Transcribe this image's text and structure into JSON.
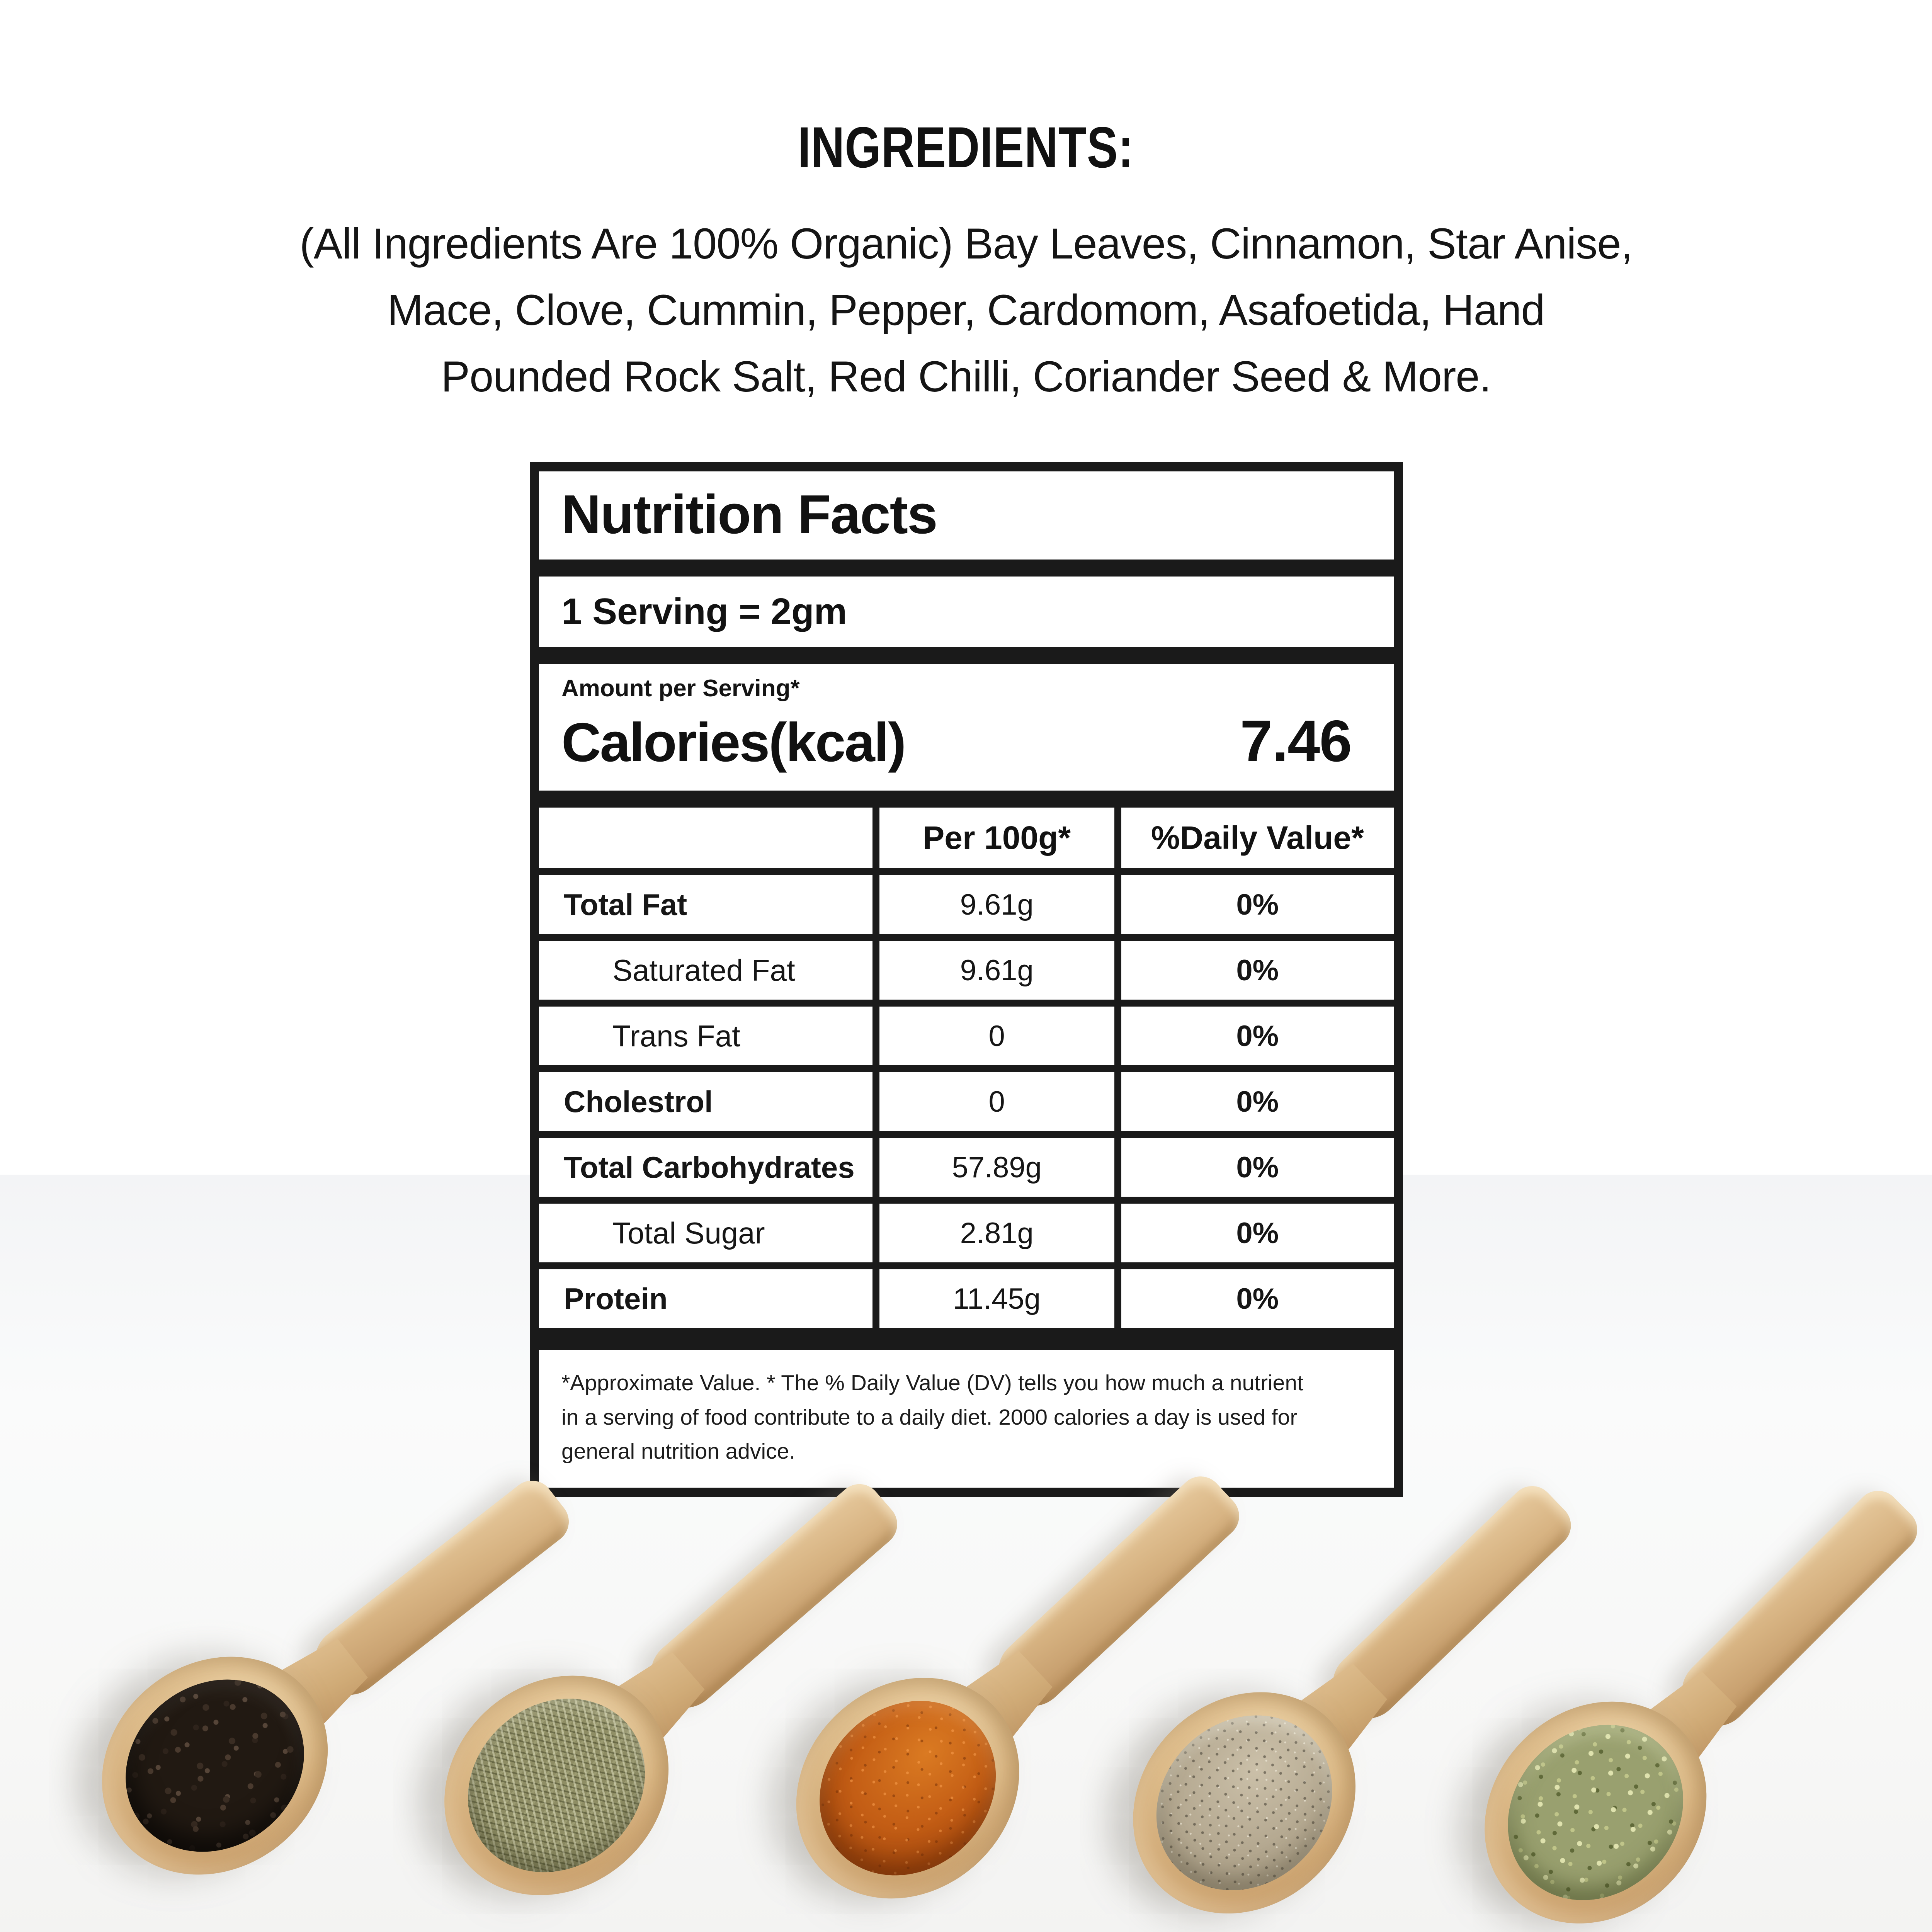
{
  "ingredients": {
    "heading": "INGREDIENTS:",
    "lines": [
      "(All Ingredients Are 100% Organic) Bay Leaves, Cinnamon, Star Anise,",
      "Mace, Clove, Cummin, Pepper, Cardomom, Asafoetida, Hand",
      "Pounded Rock Salt, Red Chilli, Coriander Seed & More."
    ]
  },
  "nutrition_facts": {
    "title": "Nutrition Facts",
    "serving": "1 Serving = 2gm",
    "amount_label": "Amount per Serving*",
    "calories_label": "Calories(kcal)",
    "calories_value": "7.46",
    "columns": {
      "per100g": "Per 100g*",
      "daily_value": "%Daily Value*"
    },
    "rows": [
      {
        "label": "Total Fat",
        "per100g": "9.61g",
        "dv": "0%"
      },
      {
        "label": "Saturated Fat",
        "per100g": "9.61g",
        "dv": "0%"
      },
      {
        "label": "Trans Fat",
        "per100g": "0",
        "dv": "0%"
      },
      {
        "label": "Cholestrol",
        "per100g": "0",
        "dv": "0%"
      },
      {
        "label": "Total Carbohydrates",
        "per100g": "57.89g",
        "dv": "0%"
      },
      {
        "label": "Total Sugar",
        "per100g": "2.81g",
        "dv": "0%"
      },
      {
        "label": "Protein",
        "per100g": "11.45g",
        "dv": "0%"
      }
    ],
    "footnote": "*Approximate Value. * The % Daily Value (DV) tells you how much a nutrient in a serving of food contribute to a daily diet. 2000 calories a day is used for general nutrition advice."
  },
  "spoons": [
    {
      "name": "black-peppercorns",
      "color": "#211912"
    },
    {
      "name": "dried-thyme",
      "color": "#8e8d64"
    },
    {
      "name": "red-chilli-powder",
      "color": "#c45e15"
    },
    {
      "name": "ground-pepper-powder",
      "color": "#b3a78f"
    },
    {
      "name": "dried-oregano",
      "color": "#99a06f"
    }
  ],
  "colors": {
    "text": "#1b1b1b",
    "table_border": "#1a1a1a",
    "wood": "#d7b382",
    "photo_background": "#f5f6f7"
  }
}
